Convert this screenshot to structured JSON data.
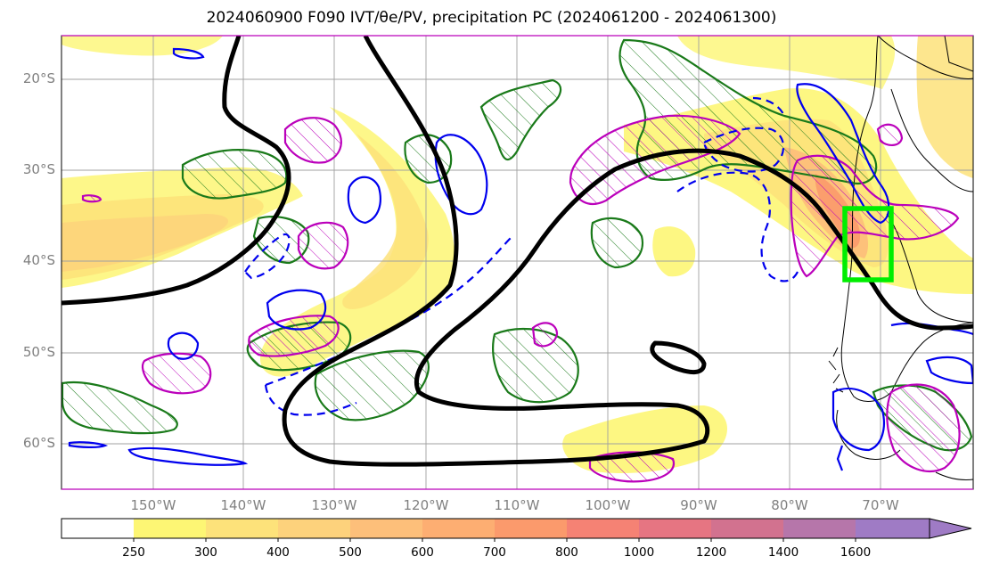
{
  "title": "2024060900 F090 IVT/θe/PV, precipitation PC (2024061200 - 2024061300)",
  "map": {
    "lat_labels": [
      "20°S",
      "30°S",
      "40°S",
      "50°S",
      "60°S"
    ],
    "lon_labels": [
      "150°W",
      "140°W",
      "130°W",
      "120°W",
      "110°W",
      "100°W",
      "90°W",
      "80°W",
      "70°W"
    ],
    "colors": {
      "ivt_contour": "#000000",
      "green_contour": "#1a7a1a",
      "blue_contour": "#0000ee",
      "magenta_contour": "#bb00bb",
      "target_box": "#00ee00"
    }
  },
  "colorbar": {
    "levels": [
      "250",
      "300",
      "400",
      "500",
      "600",
      "700",
      "800",
      "1000",
      "1200",
      "1400",
      "1600"
    ],
    "colors": [
      "#ffffff",
      "#fdf674",
      "#fde27a",
      "#fdd27c",
      "#fdbf7a",
      "#fdae72",
      "#fb9a6c",
      "#f58274",
      "#e67582",
      "#d2728f",
      "#b676aa",
      "#9f7bc5"
    ]
  }
}
